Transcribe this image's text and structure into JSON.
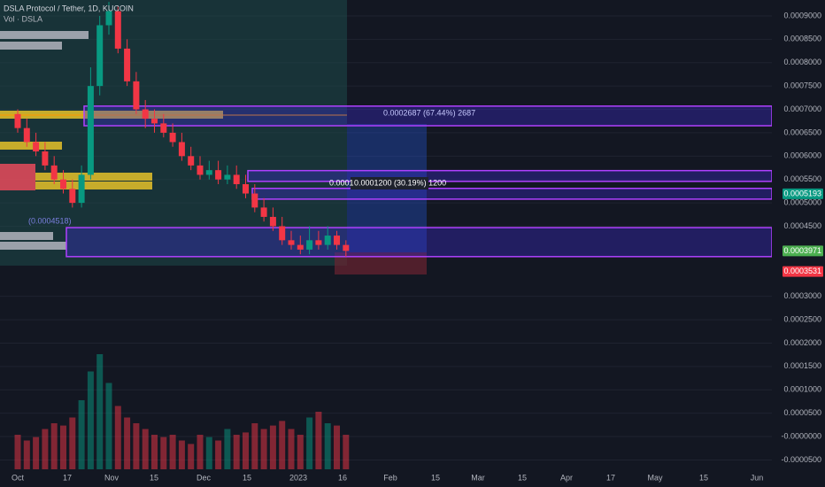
{
  "chart_data": {
    "type": "candlestick",
    "title": "DSLA Protocol / Tether, 1D, KUCOIN",
    "indicator": "Vol · DSLA",
    "x_labels": [
      "Oct",
      "17",
      "Nov",
      "15",
      "Dec",
      "15",
      "2023",
      "16",
      "Feb",
      "15",
      "Mar",
      "15",
      "Apr",
      "17",
      "May",
      "15",
      "Jun"
    ],
    "open": [
      0.00069,
      0.00066,
      0.00063,
      0.00061,
      0.00058,
      0.00055,
      0.00053,
      0.0005,
      0.00056,
      0.00075,
      0.00088,
      0.00091,
      0.00083,
      0.00076,
      0.0007,
      0.00068,
      0.00067,
      0.00065,
      0.00063,
      0.0006,
      0.00058,
      0.00056,
      0.00057,
      0.00055,
      0.00056,
      0.00054,
      0.00052,
      0.00049,
      0.00047,
      0.00045,
      0.00042,
      0.00041,
      0.0004,
      0.00042,
      0.00041,
      0.00043,
      0.00041
    ],
    "high": [
      0.0007,
      0.00068,
      0.00065,
      0.00063,
      0.0006,
      0.00057,
      0.00055,
      0.00058,
      0.00079,
      0.0009,
      0.00093,
      0.00092,
      0.00085,
      0.00078,
      0.00072,
      0.0007,
      0.00069,
      0.00067,
      0.00065,
      0.00062,
      0.0006,
      0.00059,
      0.00059,
      0.00058,
      0.00058,
      0.00056,
      0.00054,
      0.00051,
      0.00049,
      0.00047,
      0.00044,
      0.00043,
      0.00045,
      0.00044,
      0.00045,
      0.00044,
      0.00042
    ],
    "low": [
      0.00065,
      0.00062,
      0.0006,
      0.00057,
      0.00054,
      0.00052,
      0.00049,
      0.00049,
      0.00055,
      0.00073,
      0.00086,
      0.00082,
      0.00075,
      0.00069,
      0.00066,
      0.00065,
      0.00064,
      0.00062,
      0.00059,
      0.00057,
      0.00055,
      0.00055,
      0.00054,
      0.00054,
      0.00053,
      0.00051,
      0.00048,
      0.00046,
      0.00044,
      0.00041,
      0.0004,
      0.00039,
      0.00039,
      0.0004,
      0.0004,
      0.0004,
      0.000385
    ],
    "close": [
      0.00066,
      0.00063,
      0.00061,
      0.00058,
      0.00055,
      0.00053,
      0.0005,
      0.00056,
      0.00075,
      0.00088,
      0.00091,
      0.00083,
      0.00076,
      0.0007,
      0.00068,
      0.00067,
      0.00065,
      0.00063,
      0.0006,
      0.00058,
      0.00056,
      0.00057,
      0.00055,
      0.00056,
      0.00054,
      0.00052,
      0.00049,
      0.00047,
      0.00045,
      0.00042,
      0.00041,
      0.0004,
      0.00042,
      0.00041,
      0.00043,
      0.00041,
      0.0003971
    ],
    "volume": [
      30,
      25,
      28,
      35,
      40,
      38,
      45,
      60,
      85,
      100,
      75,
      55,
      45,
      40,
      35,
      30,
      28,
      30,
      25,
      22,
      30,
      28,
      25,
      35,
      30,
      32,
      40,
      35,
      38,
      42,
      35,
      30,
      45,
      50,
      40,
      38,
      30
    ],
    "volume_lim": [
      0,
      100
    ],
    "up_color": "#089981",
    "down_color": "#f23645",
    "ylim": [
      -7e-05,
      0.000934
    ],
    "yticks": [
      {
        "value": 0.0009,
        "label": "0.0009000"
      },
      {
        "value": 0.00085,
        "label": "0.0008500"
      },
      {
        "value": 0.0008,
        "label": "0.0008000"
      },
      {
        "value": 0.00075,
        "label": "0.0007500"
      },
      {
        "value": 0.0007,
        "label": "0.0007000"
      },
      {
        "value": 0.00065,
        "label": "0.0006500"
      },
      {
        "value": 0.0006,
        "label": "0.0006000"
      },
      {
        "value": 0.00055,
        "label": "0.0005500"
      },
      {
        "value": 0.0005,
        "label": "0.0005000"
      },
      {
        "value": 0.00045,
        "label": "0.0004500"
      },
      {
        "value": 0.0003,
        "label": "0.0003000"
      },
      {
        "value": 0.00025,
        "label": "0.0002500"
      },
      {
        "value": 0.0002,
        "label": "0.0002000"
      },
      {
        "value": 0.00015,
        "label": "0.0001500"
      },
      {
        "value": 0.0001,
        "label": "0.0001000"
      },
      {
        "value": 5e-05,
        "label": "0.0000500"
      },
      {
        "value": 0,
        "label": "-0.0000000"
      },
      {
        "value": -5e-05,
        "label": "-0.0000500"
      }
    ],
    "price_tags": [
      {
        "value": 0.0005193,
        "label": "0.0005193",
        "color": "#089981"
      },
      {
        "value": 0.0003971,
        "label": "0.0003971",
        "color": "#4caf50"
      },
      {
        "value": 0.0003531,
        "label": "0.0003531",
        "color": "#f23645"
      }
    ],
    "zones": [
      {
        "top": 0.000707,
        "bottom": 0.000665
      },
      {
        "top": 0.000569,
        "bottom": 0.000546
      },
      {
        "top": 0.000531,
        "bottom": 0.000508
      },
      {
        "top": 0.000447,
        "bottom": 0.000385
      }
    ],
    "annotations": [
      "0.0002687 (67.44%) 2687",
      "0.0001200 (30.19%) 1200",
      "0.0001",
      "(0.0004518)"
    ]
  }
}
